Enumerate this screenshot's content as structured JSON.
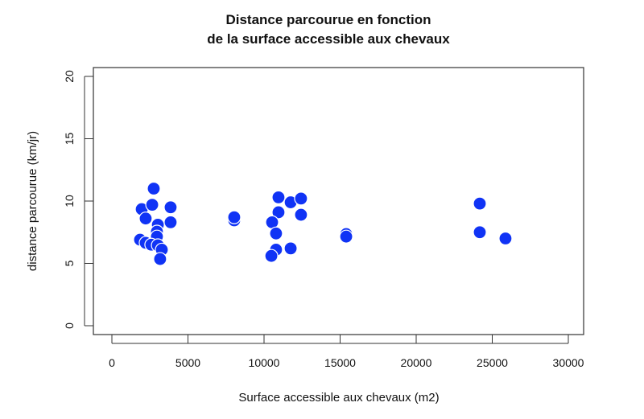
{
  "chart_data": {
    "type": "scatter",
    "title": "Distance parcourue en fonction\nde la surface accessible aux chevaux",
    "title_lines": [
      "Distance parcourue en fonction",
      "de la surface accessible aux chevaux"
    ],
    "xlabel": "Surface accessible aux chevaux (m2)",
    "ylabel": "distance parcourue (km/jr)",
    "xlim": [
      0,
      30000
    ],
    "ylim": [
      0,
      20
    ],
    "xticks": [
      0,
      5000,
      10000,
      15000,
      20000,
      25000,
      30000
    ],
    "yticks": [
      0,
      5,
      10,
      15,
      20
    ],
    "grid": false,
    "legend": null,
    "marker_color": "#1033f5",
    "marker_edge_color": "#ffffff",
    "series": [
      {
        "name": "chevaux",
        "points": [
          {
            "x": 2750,
            "y": 11.0
          },
          {
            "x": 1960,
            "y": 9.35
          },
          {
            "x": 2650,
            "y": 9.7
          },
          {
            "x": 3860,
            "y": 9.5
          },
          {
            "x": 2220,
            "y": 8.6
          },
          {
            "x": 3020,
            "y": 8.1
          },
          {
            "x": 2960,
            "y": 7.55
          },
          {
            "x": 3860,
            "y": 8.3
          },
          {
            "x": 2960,
            "y": 7.15
          },
          {
            "x": 1850,
            "y": 6.9
          },
          {
            "x": 2220,
            "y": 6.65
          },
          {
            "x": 2590,
            "y": 6.5
          },
          {
            "x": 3020,
            "y": 6.45
          },
          {
            "x": 3280,
            "y": 6.1
          },
          {
            "x": 3170,
            "y": 5.35
          },
          {
            "x": 8040,
            "y": 8.45
          },
          {
            "x": 8040,
            "y": 8.7
          },
          {
            "x": 10950,
            "y": 10.3
          },
          {
            "x": 11750,
            "y": 9.9
          },
          {
            "x": 12430,
            "y": 10.2
          },
          {
            "x": 10950,
            "y": 9.1
          },
          {
            "x": 12430,
            "y": 8.9
          },
          {
            "x": 10530,
            "y": 8.3
          },
          {
            "x": 10790,
            "y": 7.4
          },
          {
            "x": 10790,
            "y": 6.1
          },
          {
            "x": 11750,
            "y": 6.2
          },
          {
            "x": 10480,
            "y": 5.6
          },
          {
            "x": 15400,
            "y": 7.35
          },
          {
            "x": 15400,
            "y": 7.15
          },
          {
            "x": 24180,
            "y": 9.8
          },
          {
            "x": 24180,
            "y": 7.5
          },
          {
            "x": 25870,
            "y": 7.0
          }
        ]
      }
    ]
  }
}
